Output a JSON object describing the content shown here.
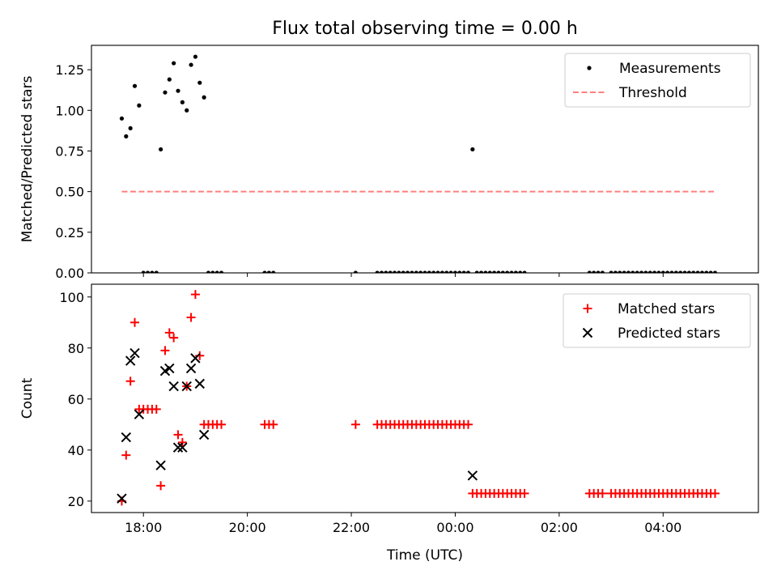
{
  "title": "Flux total observing time = 0.00 h",
  "colors": {
    "measurement": "#000000",
    "threshold": "#ff7f7f",
    "matched": "#ff0000",
    "predicted": "#000000"
  },
  "chart_data": [
    {
      "type": "scatter",
      "ylabel": "Matched/Predicted stars",
      "xlim": [
        "17:00",
        "05:50"
      ],
      "ylim": [
        0,
        1.4
      ],
      "yticks": [
        "0.00",
        "0.25",
        "0.50",
        "0.75",
        "1.00",
        "1.25"
      ],
      "legend": "top-right",
      "series": [
        {
          "name": "Measurements",
          "marker": "dot",
          "x": [
            "17:35",
            "17:40",
            "17:45",
            "17:50",
            "17:55",
            "18:00",
            "18:05",
            "18:10",
            "18:15",
            "18:20",
            "18:25",
            "18:30",
            "18:35",
            "18:40",
            "18:45",
            "18:50",
            "18:55",
            "19:00",
            "19:05",
            "19:10",
            "19:15",
            "19:20",
            "19:25",
            "19:30",
            "20:20",
            "20:25",
            "20:30",
            "22:05",
            "22:30",
            "22:35",
            "22:40",
            "22:45",
            "22:50",
            "22:55",
            "23:00",
            "23:05",
            "23:10",
            "23:15",
            "23:20",
            "23:25",
            "23:30",
            "23:35",
            "23:40",
            "23:45",
            "23:50",
            "23:55",
            "00:00",
            "00:05",
            "00:10",
            "00:15",
            "00:20",
            "00:25",
            "00:30",
            "00:35",
            "00:40",
            "00:45",
            "00:50",
            "00:55",
            "01:00",
            "01:05",
            "01:10",
            "01:15",
            "01:20",
            "02:35",
            "02:40",
            "02:45",
            "02:50",
            "03:00",
            "03:05",
            "03:10",
            "03:15",
            "03:20",
            "03:25",
            "03:30",
            "03:35",
            "03:40",
            "03:45",
            "03:50",
            "03:55",
            "04:00",
            "04:05",
            "04:10",
            "04:15",
            "04:20",
            "04:25",
            "04:30",
            "04:35",
            "04:40",
            "04:45",
            "04:50",
            "04:55",
            "05:00"
          ],
          "y": [
            0.95,
            0.84,
            0.89,
            1.15,
            1.03,
            0,
            0,
            0,
            0,
            0.76,
            1.11,
            1.19,
            1.29,
            1.12,
            1.05,
            1.0,
            1.28,
            1.33,
            1.17,
            1.08,
            0,
            0,
            0,
            0,
            0,
            0,
            0,
            0,
            0,
            0,
            0,
            0,
            0,
            0,
            0,
            0,
            0,
            0,
            0,
            0,
            0,
            0,
            0,
            0,
            0,
            0,
            0,
            0,
            0,
            0,
            0.76,
            0,
            0,
            0,
            0,
            0,
            0,
            0,
            0,
            0,
            0,
            0,
            0,
            0,
            0,
            0,
            0,
            0,
            0,
            0,
            0,
            0,
            0,
            0,
            0,
            0,
            0,
            0,
            0,
            0,
            0,
            0,
            0,
            0,
            0,
            0,
            0,
            0,
            0,
            0,
            0,
            0
          ]
        },
        {
          "name": "Threshold",
          "style": "dashed",
          "x": [
            "17:35",
            "05:00"
          ],
          "y": [
            0.5,
            0.5
          ]
        }
      ]
    },
    {
      "type": "scatter",
      "xlabel": "Time (UTC)",
      "ylabel": "Count",
      "xlim": [
        "17:00",
        "05:50"
      ],
      "ylim": [
        15.5,
        105
      ],
      "yticks": [
        "20",
        "40",
        "60",
        "80",
        "100"
      ],
      "xticks": [
        "18:00",
        "20:00",
        "22:00",
        "00:00",
        "02:00",
        "04:00"
      ],
      "legend": "top-right",
      "series": [
        {
          "name": "Matched stars",
          "marker": "plus",
          "x": [
            "17:35",
            "17:40",
            "17:45",
            "17:50",
            "17:55",
            "18:00",
            "18:05",
            "18:10",
            "18:15",
            "18:20",
            "18:25",
            "18:30",
            "18:35",
            "18:40",
            "18:45",
            "18:50",
            "18:55",
            "19:00",
            "19:05",
            "19:10",
            "19:15",
            "19:20",
            "19:25",
            "19:30",
            "20:20",
            "20:25",
            "20:30",
            "22:05",
            "22:30",
            "22:35",
            "22:40",
            "22:45",
            "22:50",
            "22:55",
            "23:00",
            "23:05",
            "23:10",
            "23:15",
            "23:20",
            "23:25",
            "23:30",
            "23:35",
            "23:40",
            "23:45",
            "23:50",
            "23:55",
            "00:00",
            "00:05",
            "00:10",
            "00:15",
            "00:20",
            "00:25",
            "00:30",
            "00:35",
            "00:40",
            "00:45",
            "00:50",
            "00:55",
            "01:00",
            "01:05",
            "01:10",
            "01:15",
            "01:20",
            "02:35",
            "02:40",
            "02:45",
            "02:50",
            "03:00",
            "03:05",
            "03:10",
            "03:15",
            "03:20",
            "03:25",
            "03:30",
            "03:35",
            "03:40",
            "03:45",
            "03:50",
            "03:55",
            "04:00",
            "04:05",
            "04:10",
            "04:15",
            "04:20",
            "04:25",
            "04:30",
            "04:35",
            "04:40",
            "04:45",
            "04:50",
            "04:55",
            "05:00"
          ],
          "y": [
            20,
            38,
            67,
            90,
            56,
            56,
            56,
            56,
            56,
            26,
            79,
            86,
            84,
            46,
            43,
            65,
            92,
            101,
            77,
            50,
            50,
            50,
            50,
            50,
            50,
            50,
            50,
            50,
            50,
            50,
            50,
            50,
            50,
            50,
            50,
            50,
            50,
            50,
            50,
            50,
            50,
            50,
            50,
            50,
            50,
            50,
            50,
            50,
            50,
            50,
            23,
            23,
            23,
            23,
            23,
            23,
            23,
            23,
            23,
            23,
            23,
            23,
            23,
            23,
            23,
            23,
            23,
            23,
            23,
            23,
            23,
            23,
            23,
            23,
            23,
            23,
            23,
            23,
            23,
            23,
            23,
            23,
            23,
            23,
            23,
            23,
            23,
            23,
            23,
            23,
            23,
            23
          ]
        },
        {
          "name": "Predicted stars",
          "marker": "x",
          "x": [
            "17:35",
            "17:40",
            "17:45",
            "17:50",
            "17:55",
            "18:20",
            "18:25",
            "18:30",
            "18:35",
            "18:40",
            "18:45",
            "18:50",
            "18:55",
            "19:00",
            "19:05",
            "19:10",
            "00:20"
          ],
          "y": [
            21,
            45,
            75,
            78,
            54,
            34,
            71,
            72,
            65,
            41,
            41,
            65,
            72,
            76,
            66,
            46,
            30
          ]
        }
      ]
    }
  ]
}
